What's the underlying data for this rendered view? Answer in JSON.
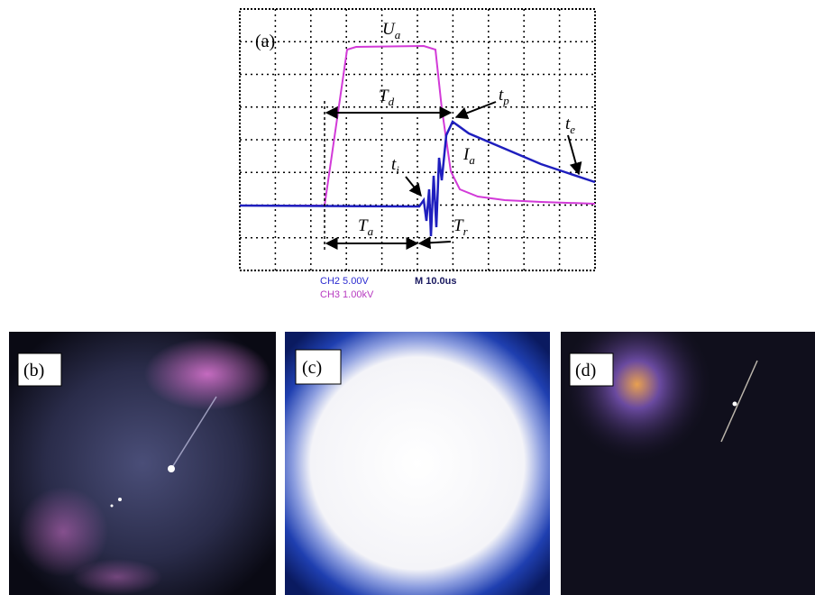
{
  "panel_a": {
    "label": "(a)",
    "annotations": [
      {
        "main": "U",
        "sub": "a"
      },
      {
        "main": "T",
        "sub": "d"
      },
      {
        "main": "t",
        "sub": "p"
      },
      {
        "main": "t",
        "sub": "e"
      },
      {
        "main": "t",
        "sub": "i"
      },
      {
        "main": "I",
        "sub": "a"
      },
      {
        "main": "T",
        "sub": "a"
      },
      {
        "main": "T",
        "sub": "r"
      }
    ],
    "scope_readout": {
      "ch2": "CH2  5.00V",
      "ch3": "CH3  1.00kV",
      "timebase": "M 10.0us"
    }
  },
  "panel_b": {
    "label": "(b)"
  },
  "panel_c": {
    "label": "(c)"
  },
  "panel_d": {
    "label": "(d)"
  }
}
